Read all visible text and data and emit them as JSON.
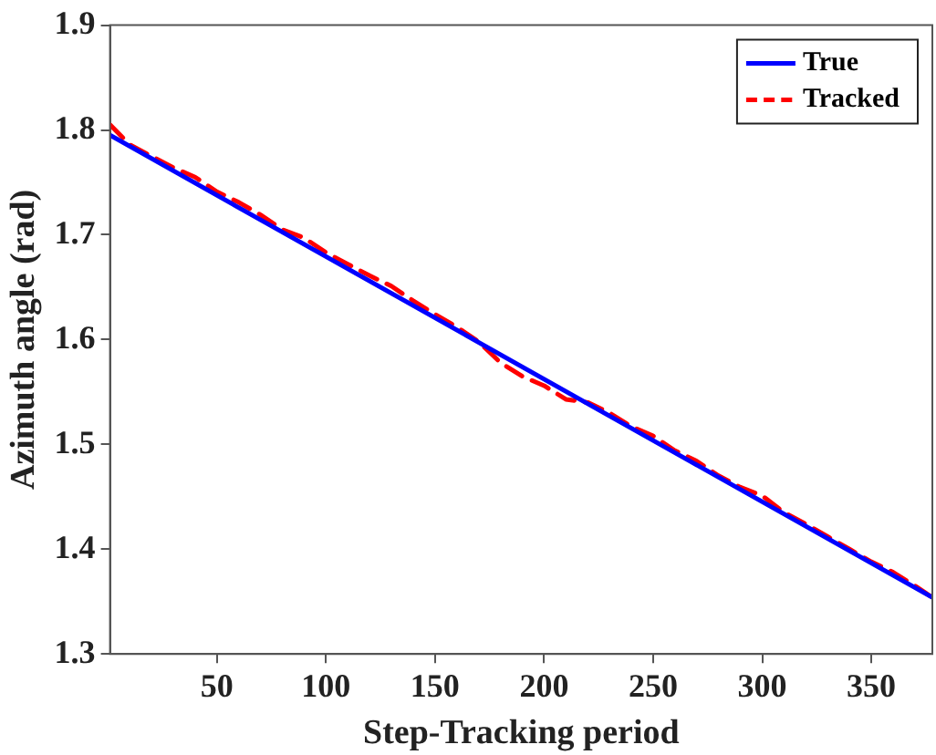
{
  "chart_data": {
    "type": "line",
    "xlabel": "Step-Tracking period",
    "ylabel": "Azimuth angle (rad)",
    "xlim": [
      1,
      378
    ],
    "xticks": [
      50,
      100,
      150,
      200,
      250,
      300,
      350
    ],
    "ylim": [
      1.3,
      1.9
    ],
    "yticks": [
      1.3,
      1.4,
      1.5,
      1.6,
      1.7,
      1.8,
      1.9
    ],
    "grid": false,
    "legend": "top right",
    "marker": "none",
    "series": [
      {
        "name": "True",
        "color": "#0000ff",
        "line_style": "solid",
        "x": [
          1,
          378
        ],
        "values": [
          1.795,
          1.354
        ]
      },
      {
        "name": "Tracked",
        "color": "#ff0000",
        "line_style": "dashed",
        "x": [
          1,
          10,
          20,
          30,
          40,
          50,
          60,
          70,
          80,
          90,
          100,
          110,
          120,
          130,
          140,
          150,
          160,
          170,
          180,
          190,
          200,
          210,
          220,
          230,
          240,
          250,
          260,
          270,
          280,
          290,
          300,
          310,
          320,
          330,
          340,
          350,
          360,
          370,
          378
        ],
        "values": [
          1.805,
          1.786,
          1.775,
          1.764,
          1.755,
          1.741,
          1.731,
          1.719,
          1.705,
          1.697,
          1.683,
          1.672,
          1.661,
          1.651,
          1.637,
          1.624,
          1.612,
          1.598,
          1.578,
          1.565,
          1.556,
          1.543,
          1.54,
          1.53,
          1.517,
          1.508,
          1.494,
          1.484,
          1.47,
          1.459,
          1.451,
          1.435,
          1.424,
          1.412,
          1.4,
          1.388,
          1.378,
          1.365,
          1.354
        ]
      }
    ]
  }
}
